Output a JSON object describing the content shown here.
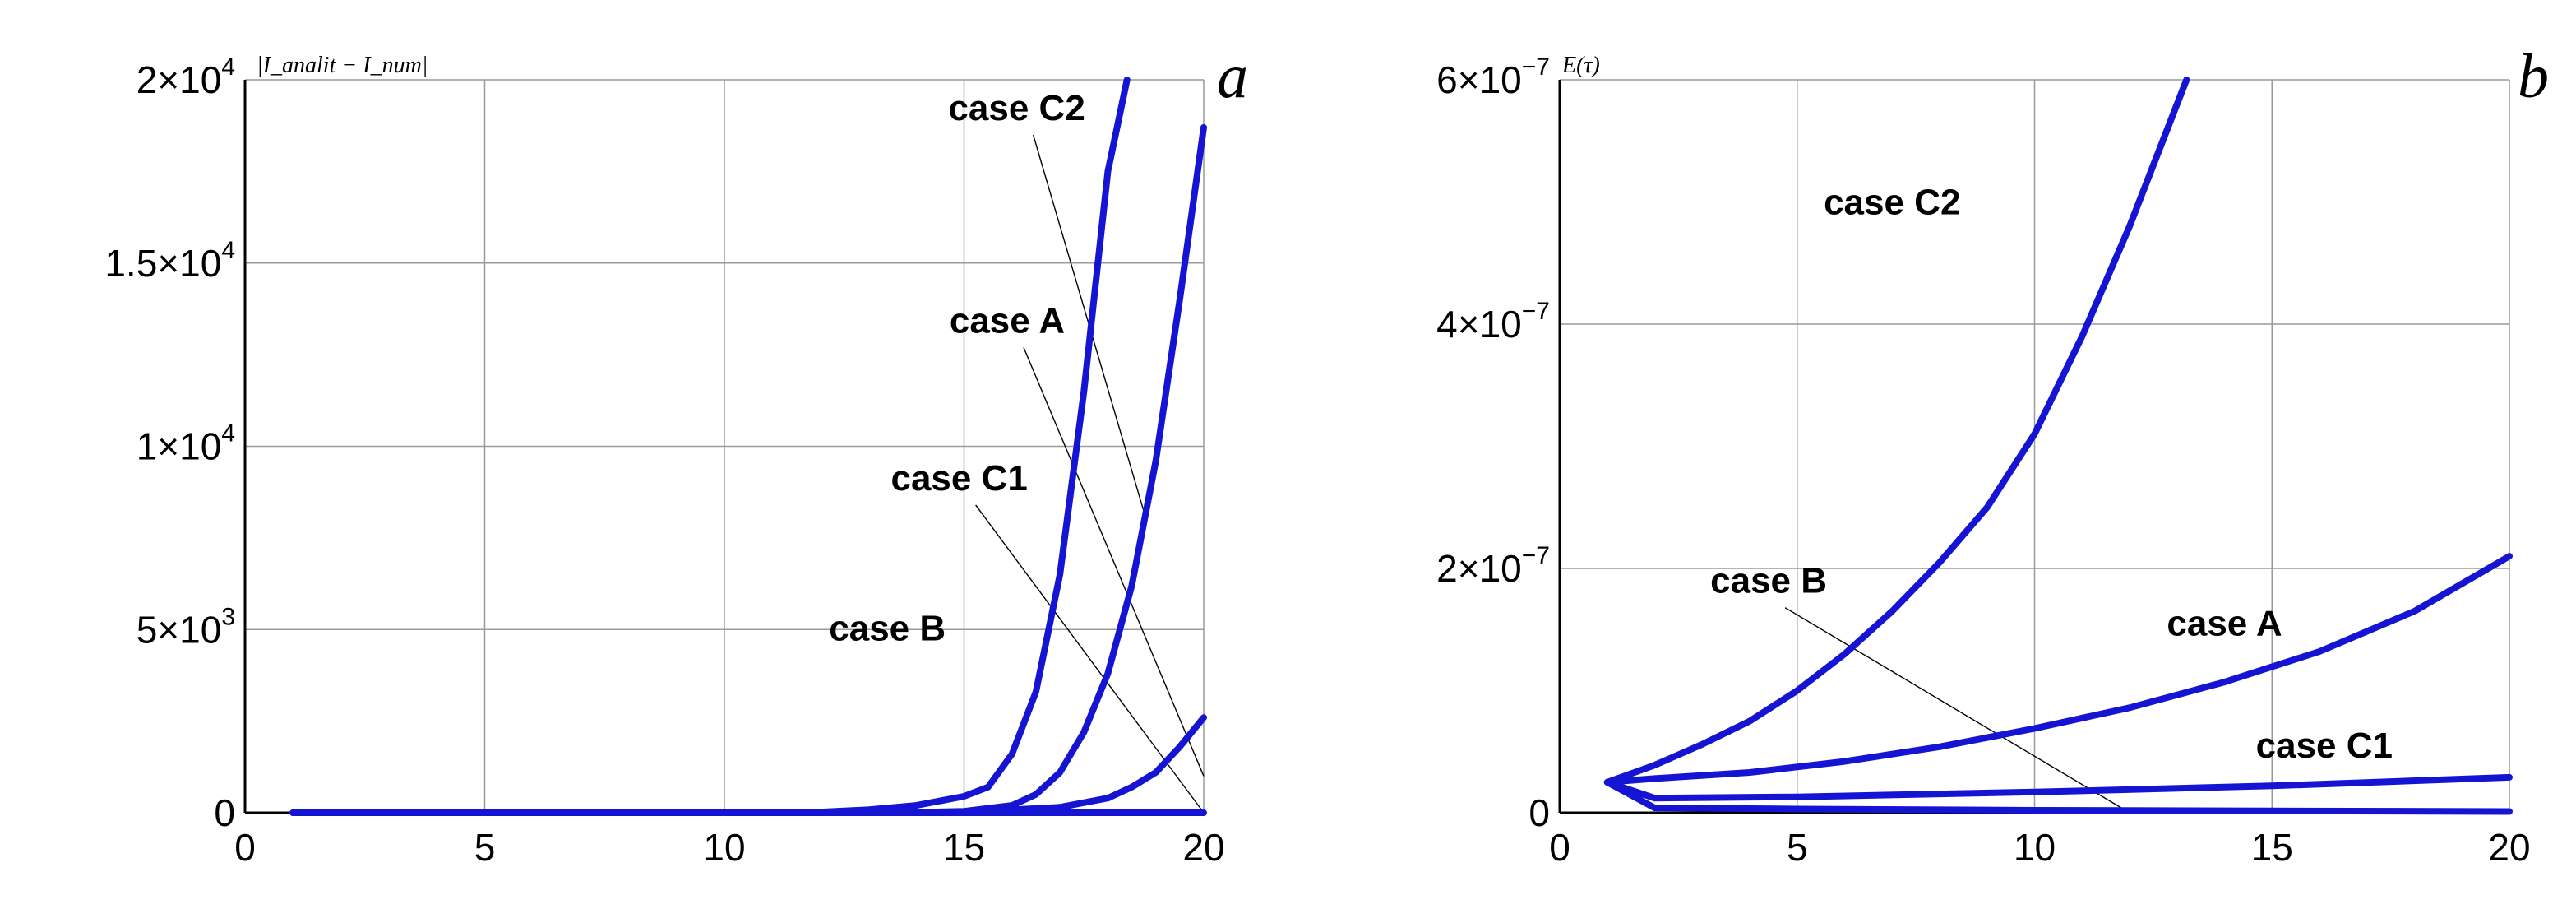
{
  "chart_data": [
    {
      "panel": "a",
      "type": "line",
      "ylabel": "|I_analit − I_num|",
      "xlim": [
        0,
        20
      ],
      "ylim": [
        0,
        20000
      ],
      "xticks": [
        0,
        5,
        10,
        15,
        20
      ],
      "xtick_labels": [
        "0",
        "5",
        "10",
        "15",
        "20"
      ],
      "yticks": [
        {
          "value": 0,
          "label": "0"
        },
        {
          "value": 5000,
          "label": "5×10",
          "exp": "3"
        },
        {
          "value": 10000,
          "label": "1×10",
          "exp": "4"
        },
        {
          "value": 15000,
          "label": "1.5×10",
          "exp": "4"
        },
        {
          "value": 20000,
          "label": "2×10",
          "exp": "4"
        }
      ],
      "series": [
        {
          "name": "case C2",
          "x": [
            1,
            12,
            13,
            14,
            15,
            15.5,
            16,
            16.5,
            17,
            17.5,
            18,
            18.4
          ],
          "y": [
            0,
            20,
            80,
            200,
            450,
            700,
            1600,
            3300,
            6500,
            11500,
            17500,
            20000
          ]
        },
        {
          "name": "case A",
          "x": [
            1,
            14,
            15,
            16,
            16.5,
            17,
            17.5,
            18,
            18.5,
            19,
            19.5,
            20
          ],
          "y": [
            0,
            10,
            40,
            200,
            500,
            1100,
            2200,
            3800,
            6200,
            9600,
            14000,
            18700
          ]
        },
        {
          "name": "case C1",
          "x": [
            1,
            15,
            17,
            18,
            18.5,
            19,
            19.5,
            20
          ],
          "y": [
            0,
            10,
            150,
            400,
            700,
            1100,
            1800,
            2600
          ]
        },
        {
          "name": "case B",
          "x": [
            1,
            20
          ],
          "y": [
            0,
            0
          ]
        }
      ],
      "annotations": [
        {
          "text": "case C2",
          "x": 16.1,
          "y": 18900
        },
        {
          "text": "case A",
          "x": 15.9,
          "y": 13100
        },
        {
          "text": "case C1",
          "x": 14.9,
          "y": 8800
        },
        {
          "text": "case B",
          "x": 13.4,
          "y": 4700
        }
      ]
    },
    {
      "panel": "b",
      "type": "line",
      "ylabel": "E(τ)",
      "xlim": [
        0,
        20
      ],
      "ylim": [
        0,
        6e-07
      ],
      "xticks": [
        0,
        5,
        10,
        15,
        20
      ],
      "xtick_labels": [
        "0",
        "5",
        "10",
        "15",
        "20"
      ],
      "yticks": [
        {
          "value": 0,
          "label": "0"
        },
        {
          "value": 2e-07,
          "label": "2×10",
          "exp": "−7"
        },
        {
          "value": 4e-07,
          "label": "4×10",
          "exp": "−7"
        },
        {
          "value": 6e-07,
          "label": "6×10",
          "exp": "−7"
        }
      ],
      "series": [
        {
          "name": "case C2",
          "x": [
            1,
            2,
            3,
            4,
            5,
            6,
            7,
            8,
            9,
            10,
            11,
            12,
            13.2
          ],
          "y": [
            2.5e-08,
            3.9e-08,
            5.6e-08,
            7.5e-08,
            1e-07,
            1.3e-07,
            1.65e-07,
            2.05e-07,
            2.5e-07,
            3.1e-07,
            3.9e-07,
            4.8e-07,
            6e-07
          ]
        },
        {
          "name": "case A",
          "x": [
            1,
            2,
            4,
            6,
            8,
            10,
            12,
            14,
            16,
            18,
            20
          ],
          "y": [
            2.5e-08,
            2.8e-08,
            3.3e-08,
            4.2e-08,
            5.4e-08,
            6.9e-08,
            8.6e-08,
            1.07e-07,
            1.32e-07,
            1.65e-07,
            2.1e-07
          ]
        },
        {
          "name": "case C1",
          "x": [
            1,
            2,
            5,
            10,
            15,
            20
          ],
          "y": [
            2.5e-08,
            1.2e-08,
            1.3e-08,
            1.7e-08,
            2.2e-08,
            2.9e-08
          ]
        },
        {
          "name": "case B",
          "x": [
            1,
            2,
            5,
            10,
            15,
            20
          ],
          "y": [
            2.5e-08,
            4e-09,
            3e-09,
            2e-09,
            1.5e-09,
            1e-09
          ]
        }
      ],
      "annotations": [
        {
          "text": "case C2",
          "x": 7.0,
          "y": 4.9e-07
        },
        {
          "text": "case A",
          "x": 14.0,
          "y": 1.45e-07
        },
        {
          "text": "case C1",
          "x": 16.1,
          "y": 4.5e-08
        },
        {
          "text": "case B",
          "x": 4.4,
          "y": 1.8e-07
        }
      ]
    }
  ]
}
